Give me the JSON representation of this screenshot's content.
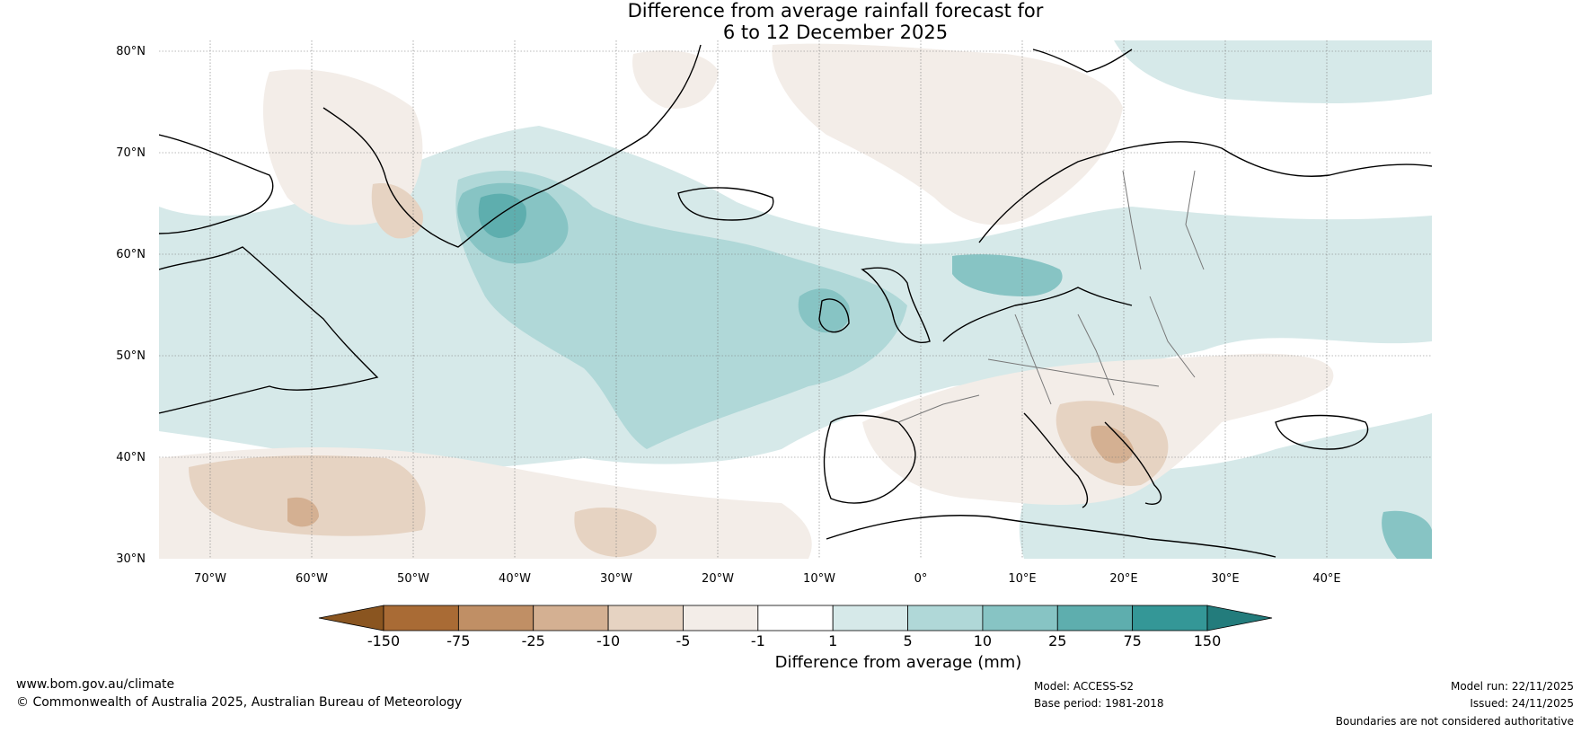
{
  "title": {
    "line1": "Difference from average rainfall forecast for",
    "line2": "6 to 12 December 2025"
  },
  "map": {
    "lat_labels": [
      "80°N",
      "70°N",
      "60°N",
      "50°N",
      "40°N",
      "30°N"
    ],
    "lon_labels": [
      "70°W",
      "60°W",
      "50°W",
      "40°W",
      "30°W",
      "20°W",
      "10°W",
      "0°",
      "10°E",
      "20°E",
      "30°E",
      "40°E"
    ],
    "extent": {
      "lon": [
        -75,
        50
      ],
      "lat": [
        30,
        80
      ]
    }
  },
  "colorbar": {
    "title": "Difference from average (mm)",
    "tick_labels": [
      "-150",
      "-75",
      "-25",
      "-10",
      "-5",
      "-1",
      "1",
      "5",
      "10",
      "25",
      "75",
      "150"
    ],
    "colors": {
      "below_min": "#8a5520",
      "bins": [
        "#a96b35",
        "#c08f65",
        "#d4b092",
        "#e6d3c2",
        "#f3ede8",
        "#ffffff",
        "#d6e9e9",
        "#b0d8d8",
        "#87c4c4",
        "#5eaeae",
        "#349797"
      ],
      "above_max": "#237c7c"
    }
  },
  "footer": {
    "website": "www.bom.gov.au/climate",
    "copyright": "© Commonwealth of Australia 2025, Australian Bureau of Meteorology",
    "model": "Model: ACCESS-S2",
    "base_period": "Base period: 1981-2018",
    "model_run": "Model run: 22/11/2025",
    "issued": "Issued: 24/11/2025",
    "disclaimer": "Boundaries are not considered authoritative"
  }
}
